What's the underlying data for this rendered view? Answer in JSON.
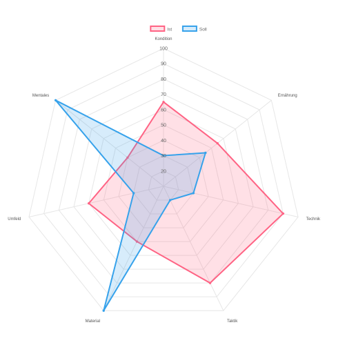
{
  "chart_data": {
    "type": "radar",
    "axes": [
      "Kondition",
      "Ernährung",
      "Technik",
      "Taktik",
      "Material",
      "Umfeld",
      "Mentales"
    ],
    "ticks": [
      "20",
      "30",
      "40",
      "50",
      "60",
      "70",
      "80",
      "90",
      "100"
    ],
    "rlim": [
      10,
      100
    ],
    "grid": true,
    "legend_position": "top",
    "series": [
      {
        "name": "Ist",
        "values": [
          65,
          55,
          90,
          80,
          50,
          60,
          40
        ],
        "color": "#ff6384",
        "fill": "rgba(255,99,132,0.2)"
      },
      {
        "name": "Soll",
        "values": [
          30,
          45,
          30,
          20,
          100,
          30,
          100
        ],
        "color": "#36a2eb",
        "fill": "rgba(54,162,235,0.2)"
      }
    ]
  }
}
